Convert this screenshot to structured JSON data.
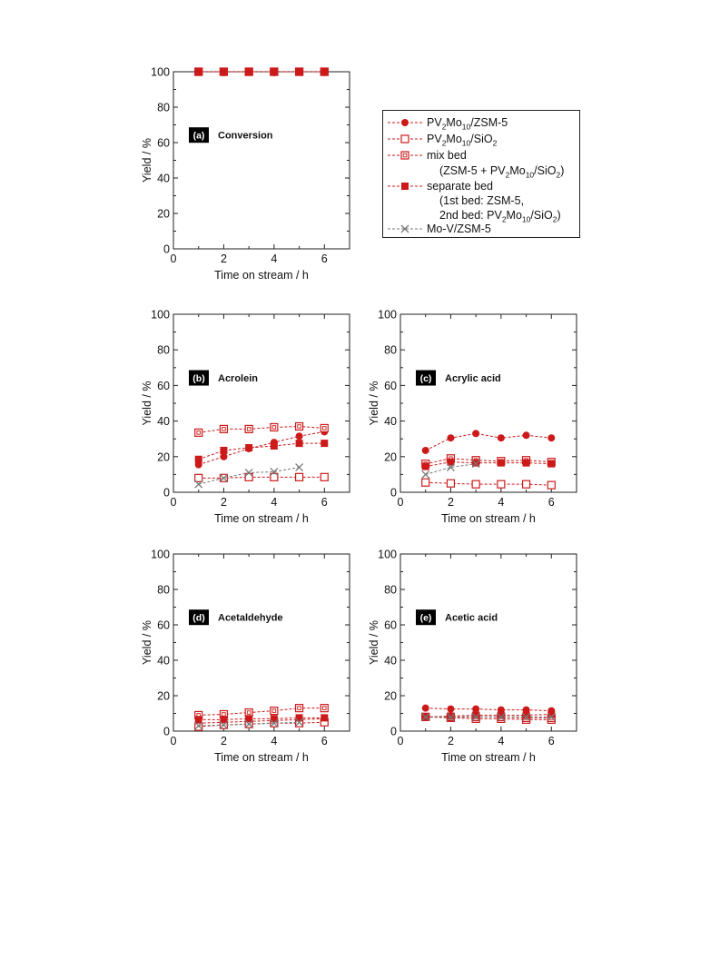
{
  "series_styles": [
    {
      "key": "pv_zsm",
      "marker": "filled-circle",
      "color": "#cc1a1a",
      "dashed": true
    },
    {
      "key": "pv_sio2",
      "marker": "open-square",
      "color": "#cc1a1a",
      "dashed": true
    },
    {
      "key": "mix_bed",
      "marker": "dotted-square",
      "color": "#cc1a1a",
      "dashed": true
    },
    {
      "key": "separate_bed",
      "marker": "filled-square",
      "color": "#cc1a1a",
      "dashed": true
    },
    {
      "key": "mov_zsm",
      "marker": "cross",
      "color": "#777777",
      "dashed": true
    }
  ],
  "legend": {
    "pv_zsm": {
      "pre": "PV",
      "s1": "2",
      "mid": "Mo",
      "s2": "10",
      "post": "/ZSM-5"
    },
    "pv_sio2": {
      "pre": "PV",
      "s1": "2",
      "mid": "Mo",
      "s2": "10",
      "post": "/SiO",
      "s3": "2"
    },
    "mix_bed": "mix bed",
    "mix_bed_detail": {
      "pre": "(ZSM-5 + PV",
      "s1": "2",
      "mid": "Mo",
      "s2": "10",
      "mid2": "/SiO",
      "s3": "2",
      "post": ")"
    },
    "separate_bed": "separate bed",
    "separate_bed_detail1": "(1st bed: ZSM-5,",
    "separate_bed_detail2": {
      "pre": "2nd bed: PV",
      "s1": "2",
      "mid": "Mo",
      "s2": "10",
      "mid2": "/SiO",
      "s3": "2",
      "post": ")"
    },
    "mov_zsm": "Mo-V/ZSM-5"
  },
  "chart_data": [
    {
      "type": "line",
      "panel_label": "(a)",
      "title": "Conversion",
      "xlabel": "Time on stream / h",
      "ylabel": "Yield / %",
      "xlim": [
        0,
        7
      ],
      "ylim": [
        0,
        100
      ],
      "xticks": [
        0,
        2,
        4,
        6
      ],
      "yticks": [
        0,
        20,
        40,
        60,
        80,
        100
      ],
      "series": [
        {
          "key": "pv_zsm",
          "x": [
            1,
            2,
            3,
            4,
            5,
            6
          ],
          "y": [
            100,
            100,
            100,
            100,
            100,
            100
          ]
        },
        {
          "key": "pv_sio2",
          "x": [
            1,
            2,
            3,
            4,
            5,
            6
          ],
          "y": [
            100,
            100,
            100,
            100,
            100,
            100
          ]
        },
        {
          "key": "mix_bed",
          "x": [
            1,
            2,
            3,
            4,
            5,
            6
          ],
          "y": [
            100,
            100,
            100,
            100,
            100,
            100
          ]
        },
        {
          "key": "separate_bed",
          "x": [
            1,
            2,
            3,
            4,
            5,
            6
          ],
          "y": [
            100,
            100,
            100,
            100,
            100,
            100
          ]
        }
      ]
    },
    {
      "type": "line",
      "panel_label": "(b)",
      "title": "Acrolein",
      "xlabel": "Time on stream / h",
      "ylabel": "Yield / %",
      "xlim": [
        0,
        7
      ],
      "ylim": [
        0,
        100
      ],
      "xticks": [
        0,
        2,
        4,
        6
      ],
      "yticks": [
        0,
        20,
        40,
        60,
        80,
        100
      ],
      "series": [
        {
          "key": "pv_zsm",
          "x": [
            1,
            2,
            3,
            4,
            5,
            6
          ],
          "y": [
            15.5,
            20,
            24.5,
            28,
            31.5,
            34
          ]
        },
        {
          "key": "pv_sio2",
          "x": [
            1,
            2,
            3,
            4,
            5,
            6
          ],
          "y": [
            8,
            8,
            8.5,
            8.5,
            8.5,
            8.5
          ]
        },
        {
          "key": "mix_bed",
          "x": [
            1,
            2,
            3,
            4,
            5,
            6
          ],
          "y": [
            33.5,
            35.5,
            35.5,
            36.5,
            37,
            36
          ]
        },
        {
          "key": "separate_bed",
          "x": [
            1,
            2,
            3,
            4,
            5,
            6
          ],
          "y": [
            18.5,
            23.5,
            25,
            26,
            27.5,
            27.5
          ]
        },
        {
          "key": "mov_zsm",
          "x": [
            1,
            2,
            3,
            4,
            5
          ],
          "y": [
            4.5,
            8,
            11,
            11.5,
            14
          ]
        }
      ]
    },
    {
      "type": "line",
      "panel_label": "(c)",
      "title": "Acrylic acid",
      "xlabel": "Time on stream / h",
      "ylabel": "Yield / %",
      "xlim": [
        0,
        7
      ],
      "ylim": [
        0,
        100
      ],
      "xticks": [
        0,
        2,
        4,
        6
      ],
      "yticks": [
        0,
        20,
        40,
        60,
        80,
        100
      ],
      "series": [
        {
          "key": "pv_zsm",
          "x": [
            1,
            2,
            3,
            4,
            5,
            6
          ],
          "y": [
            23.5,
            30.5,
            33,
            30.5,
            32,
            30.5
          ]
        },
        {
          "key": "pv_sio2",
          "x": [
            1,
            2,
            3,
            4,
            5,
            6
          ],
          "y": [
            5.5,
            5,
            4.5,
            4.5,
            4.5,
            4
          ]
        },
        {
          "key": "mix_bed",
          "x": [
            1,
            2,
            3,
            4,
            5,
            6
          ],
          "y": [
            16,
            19,
            18,
            17.5,
            18,
            17
          ]
        },
        {
          "key": "separate_bed",
          "x": [
            1,
            2,
            3,
            4,
            5,
            6
          ],
          "y": [
            14.5,
            17,
            16.5,
            16.5,
            16.5,
            16
          ]
        },
        {
          "key": "mov_zsm",
          "x": [
            1,
            2,
            3
          ],
          "y": [
            10,
            14,
            16
          ]
        }
      ]
    },
    {
      "type": "line",
      "panel_label": "(d)",
      "title": "Acetaldehyde",
      "xlabel": "Time on stream / h",
      "ylabel": "Yield / %",
      "xlim": [
        0,
        7
      ],
      "ylim": [
        0,
        100
      ],
      "xticks": [
        0,
        2,
        4,
        6
      ],
      "yticks": [
        0,
        20,
        40,
        60,
        80,
        100
      ],
      "series": [
        {
          "key": "pv_zsm",
          "x": [
            1,
            2,
            3,
            4,
            5,
            6
          ],
          "y": [
            4.5,
            5,
            5.5,
            6,
            6.5,
            7
          ]
        },
        {
          "key": "pv_sio2",
          "x": [
            1,
            2,
            3,
            4,
            5,
            6
          ],
          "y": [
            2.5,
            3.5,
            4,
            4.5,
            4.5,
            5
          ]
        },
        {
          "key": "mix_bed",
          "x": [
            1,
            2,
            3,
            4,
            5,
            6
          ],
          "y": [
            9,
            9.5,
            10.5,
            11.5,
            13,
            13
          ]
        },
        {
          "key": "separate_bed",
          "x": [
            1,
            2,
            3,
            4,
            5,
            6
          ],
          "y": [
            6.5,
            6.5,
            7,
            7,
            7.5,
            7.5
          ]
        },
        {
          "key": "mov_zsm",
          "x": [
            1,
            2,
            3,
            4,
            5
          ],
          "y": [
            3,
            3.5,
            4,
            4.5,
            5
          ]
        }
      ]
    },
    {
      "type": "line",
      "panel_label": "(e)",
      "title": "Acetic acid",
      "xlabel": "Time on stream / h",
      "ylabel": "Yield / %",
      "xlim": [
        0,
        7
      ],
      "ylim": [
        0,
        100
      ],
      "xticks": [
        0,
        2,
        4,
        6
      ],
      "yticks": [
        0,
        20,
        40,
        60,
        80,
        100
      ],
      "series": [
        {
          "key": "pv_zsm",
          "x": [
            1,
            2,
            3,
            4,
            5,
            6
          ],
          "y": [
            13,
            12.5,
            12.5,
            12,
            12,
            11.5
          ]
        },
        {
          "key": "pv_sio2",
          "x": [
            1,
            2,
            3,
            4,
            5,
            6
          ],
          "y": [
            8,
            7.5,
            7,
            7,
            6.5,
            6.5
          ]
        },
        {
          "key": "mix_bed",
          "x": [
            1,
            2,
            3,
            4,
            5,
            6
          ],
          "y": [
            8,
            8,
            8,
            8,
            7.5,
            7.5
          ]
        },
        {
          "key": "separate_bed",
          "x": [
            1,
            2,
            3,
            4,
            5,
            6
          ],
          "y": [
            8,
            8.5,
            9,
            9,
            9,
            9.5
          ]
        },
        {
          "key": "mov_zsm",
          "x": [
            1,
            2,
            3,
            4,
            5,
            6
          ],
          "y": [
            8,
            8,
            8,
            8,
            8,
            8
          ]
        }
      ]
    }
  ]
}
